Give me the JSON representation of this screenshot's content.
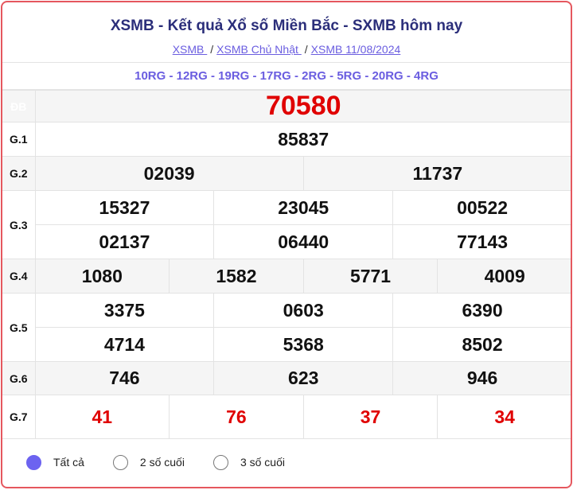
{
  "header": {
    "title": "XSMB - Kết quả Xổ số Miền Bắc - SXMB hôm nay",
    "breadcrumbs": [
      "XSMB ",
      "XSMB Chủ Nhật ",
      "XSMB 11/08/2024"
    ],
    "separator": "/"
  },
  "codes": "10RG - 12RG - 19RG - 17RG - 2RG - 5RG - 20RG - 4RG",
  "prizes": {
    "db": {
      "label": "ĐB",
      "values": [
        "70580"
      ]
    },
    "g1": {
      "label": "G.1",
      "values": [
        "85837"
      ]
    },
    "g2": {
      "label": "G.2",
      "values": [
        "02039",
        "11737"
      ]
    },
    "g3": {
      "label": "G.3",
      "values": [
        "15327",
        "23045",
        "00522",
        "02137",
        "06440",
        "77143"
      ]
    },
    "g4": {
      "label": "G.4",
      "values": [
        "1080",
        "1582",
        "5771",
        "4009"
      ]
    },
    "g5": {
      "label": "G.5",
      "values": [
        "3375",
        "0603",
        "6390",
        "4714",
        "5368",
        "8502"
      ]
    },
    "g6": {
      "label": "G.6",
      "values": [
        "746",
        "623",
        "946"
      ]
    },
    "g7": {
      "label": "G.7",
      "values": [
        "41",
        "76",
        "37",
        "34"
      ]
    }
  },
  "filter": {
    "options": [
      "Tất cả",
      "2 số cuối",
      "3 số cuối"
    ],
    "selected": "Tất cả"
  },
  "colors": {
    "accent": "#e5575e",
    "special": "#e00000",
    "title": "#2b2e7a",
    "link": "#6a5de0"
  }
}
